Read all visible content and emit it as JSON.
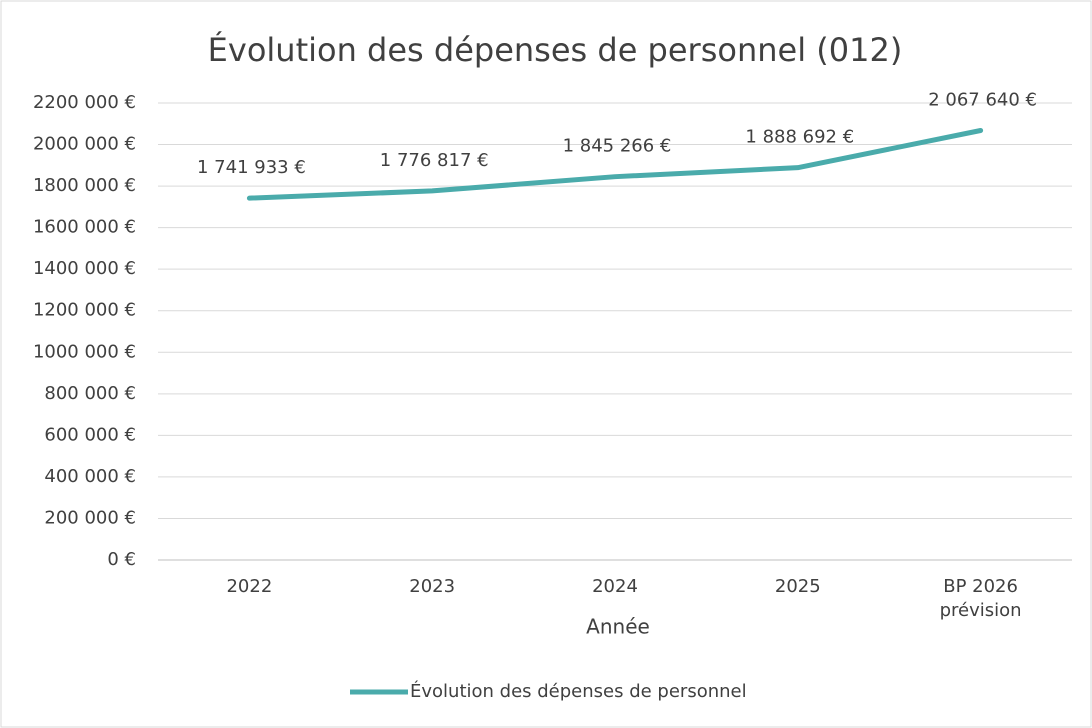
{
  "chart_data": {
    "type": "line",
    "title": "Évolution des dépenses de personnel (012)",
    "x_label": "Année",
    "categories": [
      "2022",
      "2023",
      "2024",
      "2025",
      "BP 2026 prévision"
    ],
    "series": [
      {
        "name": "Évolution des dépenses de personnel",
        "color": "#4aabab",
        "values": [
          1741933,
          1776817,
          1845266,
          1888692,
          2067640
        ],
        "value_labels": [
          "1 741 933 €",
          "1 776 817 €",
          "1 845 266 €",
          "1 888 692 €",
          "2 067 640 €"
        ]
      }
    ],
    "ylim": [
      0,
      2200000
    ],
    "yticks": [
      {
        "value": 0,
        "label": "0 €"
      },
      {
        "value": 200000,
        "label": "200 000 €"
      },
      {
        "value": 400000,
        "label": "400 000 €"
      },
      {
        "value": 600000,
        "label": "600 000 €"
      },
      {
        "value": 800000,
        "label": "800 000 €"
      },
      {
        "value": 1000000,
        "label": "1000 000 €"
      },
      {
        "value": 1200000,
        "label": "1200 000 €"
      },
      {
        "value": 1400000,
        "label": "1400 000 €"
      },
      {
        "value": 1600000,
        "label": "1600 000 €"
      },
      {
        "value": 1800000,
        "label": "1800 000 €"
      },
      {
        "value": 2000000,
        "label": "2000 000 €"
      },
      {
        "value": 2200000,
        "label": "2200 000 €"
      }
    ],
    "grid": true,
    "legend": "bottom"
  }
}
